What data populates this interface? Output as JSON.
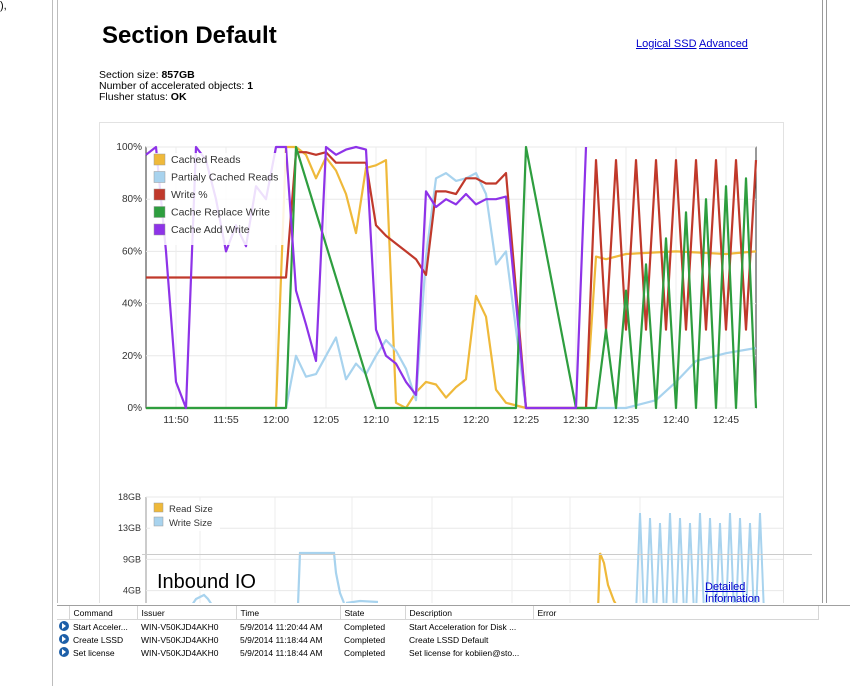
{
  "fragment": "),",
  "section": {
    "title": "Section Default",
    "links": {
      "logical_ssd": "Logical SSD",
      "advanced": "Advanced"
    },
    "size_label": "Section size: ",
    "size_value": "857GB",
    "objects_label": "Number of accelerated objects: ",
    "objects_value": "1",
    "flusher_label": "Flusher status: ",
    "flusher_value": "OK"
  },
  "chart_data": [
    {
      "type": "line",
      "title": "",
      "x_ticks": [
        "11:50",
        "11:55",
        "12:00",
        "12:05",
        "12:10",
        "12:15",
        "12:20",
        "12:25",
        "12:30",
        "12:35",
        "12:40",
        "12:45"
      ],
      "y_ticks": [
        "100%",
        "80%",
        "60%",
        "40%",
        "20%",
        "0%"
      ],
      "ylim": [
        0,
        100
      ],
      "legend_position": "top-left",
      "series": [
        {
          "name": "Cached Reads",
          "color": "#efb93a",
          "x": [
            "11:47",
            "11:50",
            "12:00",
            "12:01",
            "12:02",
            "12:03",
            "12:04",
            "12:05",
            "12:06",
            "12:07",
            "12:08",
            "12:09",
            "12:10",
            "12:11",
            "12:12",
            "12:13",
            "12:14",
            "12:15",
            "12:16",
            "12:17",
            "12:18",
            "12:19",
            "12:20",
            "12:21",
            "12:22",
            "12:23",
            "12:25",
            "12:30",
            "12:31",
            "12:32",
            "12:33",
            "12:35",
            "12:40",
            "12:45",
            "12:48"
          ],
          "y": [
            0,
            0,
            0,
            100,
            100,
            97,
            88,
            96,
            91,
            82,
            67,
            92,
            93,
            95,
            2,
            0,
            6,
            10,
            9,
            4,
            8,
            11,
            43,
            35,
            7,
            2,
            0,
            0,
            0,
            58,
            57,
            59,
            60,
            59,
            60
          ]
        },
        {
          "name": "Partialy Cached Reads",
          "color": "#a8d3ee",
          "x": [
            "11:47",
            "11:50",
            "12:00",
            "12:01",
            "12:02",
            "12:03",
            "12:04",
            "12:05",
            "12:06",
            "12:07",
            "12:08",
            "12:09",
            "12:10",
            "12:11",
            "12:12",
            "12:13",
            "12:14",
            "12:15",
            "12:16",
            "12:17",
            "12:18",
            "12:19",
            "12:20",
            "12:21",
            "12:22",
            "12:23",
            "12:25",
            "12:30",
            "12:35",
            "12:38",
            "12:40",
            "12:42",
            "12:45",
            "12:48"
          ],
          "y": [
            0,
            0,
            0,
            0,
            20,
            12,
            13,
            20,
            27,
            11,
            17,
            13,
            20,
            26,
            22,
            15,
            3,
            58,
            88,
            90,
            87,
            88,
            90,
            82,
            55,
            60,
            0,
            0,
            0,
            3,
            10,
            18,
            21,
            23
          ]
        },
        {
          "name": "Write %",
          "color": "#c0392b",
          "x": [
            "11:47",
            "11:55",
            "12:01",
            "12:02",
            "12:03",
            "12:04",
            "12:05",
            "12:06",
            "12:07",
            "12:08",
            "12:09",
            "12:10",
            "12:11",
            "12:12",
            "12:13",
            "12:14",
            "12:15",
            "12:16",
            "12:17",
            "12:18",
            "12:19",
            "12:20",
            "12:21",
            "12:22",
            "12:23",
            "12:25",
            "12:30",
            "12:31",
            "12:32",
            "12:33",
            "12:34",
            "12:35",
            "12:36",
            "12:37",
            "12:38",
            "12:39",
            "12:40",
            "12:41",
            "12:42",
            "12:43",
            "12:44",
            "12:45",
            "12:46",
            "12:47",
            "12:48"
          ],
          "y": [
            50,
            50,
            50,
            98,
            98,
            97,
            98,
            94,
            94,
            94,
            94,
            70,
            66,
            63,
            60,
            57,
            51,
            83,
            83,
            82,
            88,
            88,
            86,
            86,
            90,
            0,
            0,
            0,
            95,
            30,
            95,
            30,
            95,
            30,
            95,
            30,
            95,
            30,
            95,
            30,
            95,
            30,
            95,
            30,
            95
          ]
        },
        {
          "name": "Cache Replace Write",
          "color": "#2e9e3f",
          "x": [
            "11:47",
            "12:01",
            "12:02",
            "12:10",
            "12:20",
            "12:24",
            "12:25",
            "12:30",
            "12:32",
            "12:33",
            "12:34",
            "12:35",
            "12:36",
            "12:37",
            "12:38",
            "12:39",
            "12:40",
            "12:41",
            "12:42",
            "12:43",
            "12:44",
            "12:45",
            "12:46",
            "12:47",
            "12:48"
          ],
          "y": [
            0,
            0,
            100,
            0,
            0,
            0,
            100,
            0,
            0,
            30,
            0,
            45,
            0,
            55,
            0,
            65,
            0,
            75,
            0,
            80,
            0,
            85,
            0,
            88,
            0
          ]
        },
        {
          "name": "Cache Add Write",
          "color": "#8e33e8",
          "x": [
            "11:47",
            "11:48",
            "11:49",
            "11:50",
            "11:51",
            "11:52",
            "11:53",
            "11:54",
            "11:55",
            "11:56",
            "11:57",
            "11:58",
            "11:59",
            "12:00",
            "12:01",
            "12:02",
            "12:03",
            "12:04",
            "12:05",
            "12:06",
            "12:07",
            "12:08",
            "12:09",
            "12:10",
            "12:11",
            "12:12",
            "12:13",
            "12:14",
            "12:15",
            "12:16",
            "12:17",
            "12:18",
            "12:19",
            "12:20",
            "12:21",
            "12:22",
            "12:23",
            "12:25",
            "12:30",
            "12:31"
          ],
          "y": [
            97,
            100,
            60,
            10,
            0,
            100,
            95,
            80,
            60,
            70,
            62,
            85,
            80,
            100,
            100,
            45,
            32,
            18,
            100,
            97,
            99,
            100,
            99,
            30,
            20,
            17,
            10,
            5,
            83,
            77,
            80,
            78,
            82,
            78,
            80,
            80,
            81,
            0,
            0,
            100
          ]
        }
      ]
    },
    {
      "type": "line",
      "title": "Inbound IO",
      "y_ticks": [
        "18GB",
        "13GB",
        "9GB",
        "4GB"
      ],
      "legend_position": "top-left",
      "series": [
        {
          "name": "Read Size",
          "color": "#efb93a"
        },
        {
          "name": "Write Size",
          "color": "#a8d3ee"
        }
      ]
    }
  ],
  "inbound": {
    "title": "Inbound IO",
    "detail_link": "Detailed Information"
  },
  "tasks": {
    "headers": [
      "Command",
      "Issuer",
      "Time",
      "State",
      "Description",
      "Error"
    ],
    "rows": [
      [
        "Start Acceler...",
        "WIN-V50KJD4AKH0",
        "5/9/2014 11:20:44 AM",
        "Completed",
        "Start Acceleration for Disk ...",
        ""
      ],
      [
        "Create LSSD",
        "WIN-V50KJD4AKH0",
        "5/9/2014 11:18:44 AM",
        "Completed",
        "Create LSSD Default",
        ""
      ],
      [
        "Set license",
        "WIN-V50KJD4AKH0",
        "5/9/2014 11:18:44 AM",
        "Completed",
        "Set license for kobiien@sto...",
        ""
      ]
    ]
  }
}
